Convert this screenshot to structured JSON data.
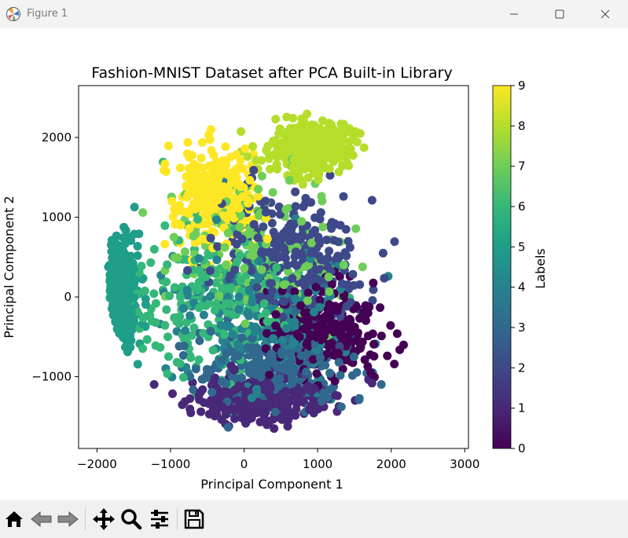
{
  "window": {
    "title": "Figure 1",
    "controls": [
      "minimize",
      "maximize",
      "close"
    ]
  },
  "toolbar": {
    "buttons": [
      {
        "name": "home-icon",
        "label": "Home"
      },
      {
        "name": "back-icon",
        "label": "Back"
      },
      {
        "name": "forward-icon",
        "label": "Forward"
      },
      {
        "name": "pan-icon",
        "label": "Pan"
      },
      {
        "name": "zoom-icon",
        "label": "Zoom"
      },
      {
        "name": "configure-subplots-icon",
        "label": "Configure subplots"
      },
      {
        "name": "save-icon",
        "label": "Save"
      }
    ]
  },
  "chart_data": {
    "type": "scatter",
    "title": "Fashion-MNIST Dataset after PCA Built-in Library",
    "xlabel": "Principal Component 1",
    "ylabel": "Principal Component 2",
    "xlim": [
      -2250,
      3050
    ],
    "ylim": [
      -1900,
      2650
    ],
    "xticks": [
      -2000,
      -1000,
      0,
      1000,
      2000,
      3000
    ],
    "xtick_labels": [
      "−2000",
      "−1000",
      "0",
      "1000",
      "2000",
      "3000"
    ],
    "yticks": [
      -1000,
      0,
      1000,
      2000
    ],
    "ytick_labels": [
      "−1000",
      "0",
      "1000",
      "2000"
    ],
    "colormap": "viridis",
    "colorbar": {
      "label": "Labels",
      "range": [
        0,
        9
      ],
      "ticks": [
        0,
        1,
        2,
        3,
        4,
        5,
        6,
        7,
        8,
        9
      ],
      "tick_labels": [
        "0",
        "1",
        "2",
        "3",
        "4",
        "5",
        "6",
        "7",
        "8",
        "9"
      ]
    },
    "grid": false,
    "clusters": [
      {
        "label": 0,
        "center": [
          1100,
          -400
        ],
        "spread": [
          700,
          500
        ],
        "count": 280
      },
      {
        "label": 1,
        "center": [
          200,
          -1300
        ],
        "spread": [
          900,
          250
        ],
        "count": 300
      },
      {
        "label": 2,
        "center": [
          700,
          400
        ],
        "spread": [
          1000,
          900
        ],
        "count": 300
      },
      {
        "label": 3,
        "center": [
          400,
          -900
        ],
        "spread": [
          1000,
          500
        ],
        "count": 260
      },
      {
        "label": 4,
        "center": [
          300,
          -200
        ],
        "spread": [
          1100,
          800
        ],
        "count": 260
      },
      {
        "label": 5,
        "center": [
          -1700,
          0
        ],
        "spread": [
          250,
          800
        ],
        "count": 320
      },
      {
        "label": 6,
        "center": [
          -400,
          -100
        ],
        "spread": [
          1100,
          900
        ],
        "count": 240
      },
      {
        "label": 7,
        "center": [
          200,
          600
        ],
        "spread": [
          1000,
          900
        ],
        "count": 160
      },
      {
        "label": 8,
        "center": [
          900,
          1900
        ],
        "spread": [
          500,
          300
        ],
        "count": 320
      },
      {
        "label": 9,
        "center": [
          -400,
          1300
        ],
        "spread": [
          500,
          500
        ],
        "count": 300
      }
    ]
  }
}
